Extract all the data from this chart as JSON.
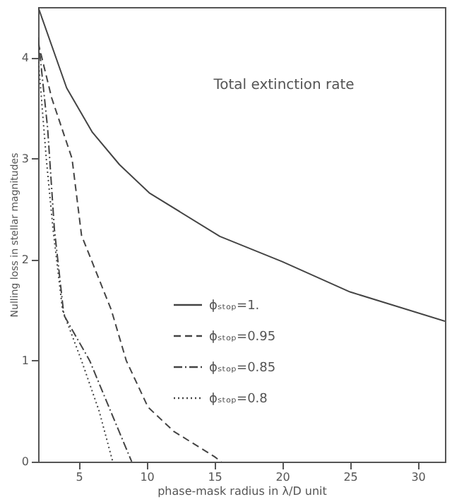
{
  "chart_data": {
    "type": "line",
    "title": "Total extinction rate",
    "xlabel": "phase-mask radius in λ/D unit",
    "ylabel": "Nulling loss in stellar magnitudes",
    "xlim": [
      2,
      32
    ],
    "ylim": [
      0,
      4.5
    ],
    "xticks": [
      5,
      10,
      15,
      20,
      25,
      30
    ],
    "yticks": [
      0,
      1,
      2,
      3,
      4
    ],
    "grid": false,
    "legend": "center",
    "marker": "none",
    "series": [
      {
        "name": "ϕₛₜₒₚ=1.",
        "color": "#444444",
        "line_style": "solid",
        "x": [
          2,
          4.1,
          6,
          8,
          10.2,
          15.4,
          20,
          25,
          32
        ],
        "values": [
          4.5,
          3.7,
          3.26,
          2.94,
          2.66,
          2.23,
          1.98,
          1.68,
          1.39
        ]
      },
      {
        "name": "ϕₛₜₒₚ=0.95",
        "color": "#444444",
        "line_style": "dashed",
        "x": [
          2,
          3,
          4.5,
          5.2,
          7.4,
          8.5,
          10.1,
          12,
          15,
          15.5
        ],
        "values": [
          4.15,
          3.6,
          3.0,
          2.24,
          1.5,
          1.0,
          0.54,
          0.3,
          0.05,
          0
        ]
      },
      {
        "name": "ϕₛₜₒₚ=0.85",
        "color": "#444444",
        "line_style": "dashdot",
        "x": [
          2,
          2.7,
          3.2,
          3.9,
          5.8,
          7.5,
          8.9
        ],
        "values": [
          4.2,
          3.3,
          2.3,
          1.45,
          1.0,
          0.45,
          0
        ]
      },
      {
        "name": "ϕₛₜₒₚ=0.8",
        "color": "#444444",
        "line_style": "dotted",
        "x": [
          2,
          2.6,
          3.1,
          3.8,
          5.2,
          6.5,
          7.5
        ],
        "values": [
          4.0,
          3.0,
          2.3,
          1.5,
          1.0,
          0.5,
          0
        ]
      }
    ]
  }
}
